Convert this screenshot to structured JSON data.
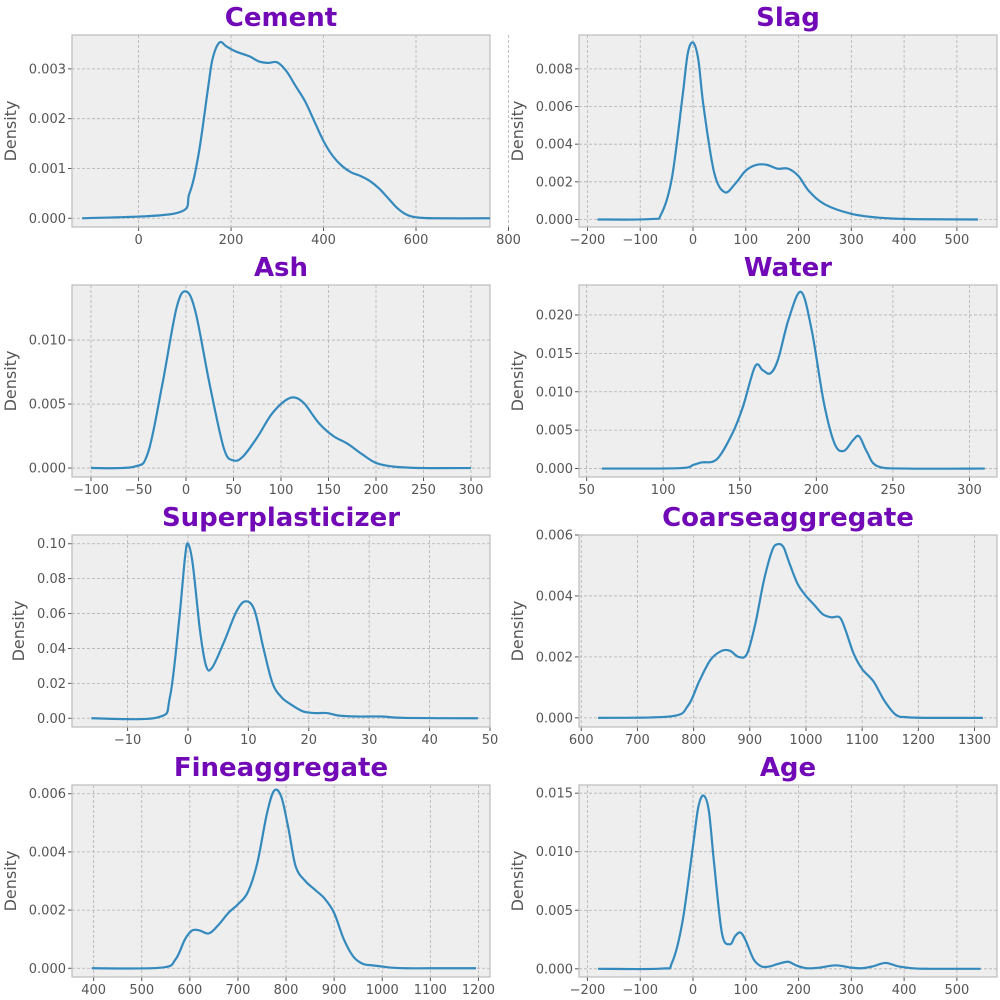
{
  "colors": {
    "title": "#7209b7",
    "line": "#348abd",
    "panel_bg": "#eeeeee",
    "grid": "#b2b2b2",
    "spine": "#bcbcbc",
    "text": "#555555"
  },
  "chart_data": [
    {
      "type": "line",
      "title": "Cement",
      "xlabel": "",
      "ylabel": "Density",
      "grid": true,
      "xlim": [
        -144,
        760
      ],
      "ylim": [
        -0.000175,
        0.00368
      ],
      "xticks": [
        "0",
        "200",
        "400",
        "600",
        "800"
      ],
      "xtick_values": [
        0,
        200,
        400,
        600,
        800
      ],
      "yticks": [
        "0.000",
        "0.001",
        "0.002",
        "0.003"
      ],
      "ytick_values": [
        0,
        0.001,
        0.002,
        0.003
      ],
      "series": [
        {
          "x": [
            -122,
            80,
            110,
            130,
            150,
            160,
            175,
            190,
            210,
            240,
            260,
            280,
            300,
            320,
            340,
            360,
            380,
            400,
            420,
            440,
            460,
            480,
            500,
            520,
            540,
            560,
            580,
            600,
            640,
            760
          ],
          "y": [
            0,
            0.0001,
            0.0005,
            0.0013,
            0.0026,
            0.0032,
            0.00353,
            0.00345,
            0.00335,
            0.00325,
            0.00315,
            0.00312,
            0.00313,
            0.00295,
            0.00265,
            0.00235,
            0.00195,
            0.00155,
            0.00125,
            0.00105,
            0.00092,
            0.00085,
            0.00075,
            0.0006,
            0.0004,
            0.0002,
            7e-05,
            2e-05,
            0,
            0
          ]
        }
      ]
    },
    {
      "type": "line",
      "title": "Slag",
      "xlabel": "",
      "ylabel": "Density",
      "grid": true,
      "xlim": [
        -216,
        576
      ],
      "ylim": [
        -0.0004,
        0.0098
      ],
      "xticks": [
        "−200",
        "−100",
        "0",
        "100",
        "200",
        "300",
        "400",
        "500"
      ],
      "xtick_values": [
        -200,
        -100,
        0,
        100,
        200,
        300,
        400,
        500
      ],
      "yticks": [
        "0.000",
        "0.002",
        "0.004",
        "0.006",
        "0.008"
      ],
      "ytick_values": [
        0,
        0.002,
        0.004,
        0.006,
        0.008
      ],
      "series": [
        {
          "x": [
            -181,
            -80,
            -60,
            -40,
            -20,
            -10,
            0,
            10,
            20,
            40,
            60,
            80,
            100,
            120,
            140,
            160,
            180,
            200,
            220,
            250,
            300,
            350,
            400,
            450,
            540
          ],
          "y": [
            0,
            2e-05,
            0.0003,
            0.0022,
            0.0065,
            0.0088,
            0.0094,
            0.0085,
            0.006,
            0.0025,
            0.00145,
            0.0019,
            0.0026,
            0.0029,
            0.0029,
            0.0027,
            0.0027,
            0.0023,
            0.0015,
            0.0008,
            0.0003,
            0.0001,
            3e-05,
            1e-05,
            0
          ]
        }
      ]
    },
    {
      "type": "line",
      "title": "Ash",
      "xlabel": "",
      "ylabel": "Density",
      "grid": true,
      "xlim": [
        -120,
        320
      ],
      "ylim": [
        -0.0007,
        0.0143
      ],
      "xticks": [
        "−100",
        "−50",
        "0",
        "50",
        "100",
        "150",
        "200",
        "250",
        "300"
      ],
      "xtick_values": [
        -100,
        -50,
        0,
        50,
        100,
        150,
        200,
        250,
        300
      ],
      "yticks": [
        "0.000",
        "0.005",
        "0.010"
      ],
      "ytick_values": [
        0,
        0.005,
        0.01
      ],
      "series": [
        {
          "x": [
            -100,
            -55,
            -40,
            -25,
            -10,
            0,
            10,
            25,
            40,
            50,
            60,
            75,
            90,
            105,
            115,
            125,
            140,
            155,
            170,
            185,
            200,
            220,
            250,
            300
          ],
          "y": [
            0,
            0.0001,
            0.0012,
            0.0065,
            0.0125,
            0.0138,
            0.0122,
            0.0065,
            0.0015,
            0.0006,
            0.0009,
            0.0024,
            0.0042,
            0.0053,
            0.0055,
            0.005,
            0.0035,
            0.0025,
            0.0019,
            0.0011,
            0.0004,
            0.0001,
            0,
            0
          ]
        }
      ]
    },
    {
      "type": "line",
      "title": "Water",
      "xlabel": "",
      "ylabel": "Density",
      "grid": true,
      "xlim": [
        45,
        318
      ],
      "ylim": [
        -0.0011,
        0.0239
      ],
      "xticks": [
        "50",
        "100",
        "150",
        "200",
        "250",
        "300"
      ],
      "xtick_values": [
        50,
        100,
        150,
        200,
        250,
        300
      ],
      "yticks": [
        "0.000",
        "0.005",
        "0.010",
        "0.015",
        "0.020"
      ],
      "ytick_values": [
        0,
        0.005,
        0.01,
        0.015,
        0.02
      ],
      "series": [
        {
          "x": [
            60,
            110,
            120,
            125,
            135,
            145,
            152,
            160,
            165,
            170,
            175,
            182,
            190,
            197,
            205,
            212,
            218,
            224,
            228,
            233,
            240,
            260,
            310
          ],
          "y": [
            0,
            5e-05,
            0.0005,
            0.0008,
            0.0012,
            0.0045,
            0.008,
            0.0133,
            0.0128,
            0.0124,
            0.0142,
            0.0195,
            0.023,
            0.018,
            0.0085,
            0.0032,
            0.0023,
            0.0037,
            0.0042,
            0.0022,
            0.0003,
            0,
            0
          ]
        }
      ]
    },
    {
      "type": "line",
      "title": "Superplasticizer",
      "xlabel": "",
      "ylabel": "Density",
      "grid": true,
      "xlim": [
        -19.2,
        50
      ],
      "ylim": [
        -0.005,
        0.105
      ],
      "xticks": [
        "−10",
        "0",
        "10",
        "20",
        "30",
        "40",
        "50"
      ],
      "xtick_values": [
        -10,
        0,
        10,
        20,
        30,
        40,
        50
      ],
      "yticks": [
        "0.00",
        "0.02",
        "0.04",
        "0.06",
        "0.08",
        "0.10"
      ],
      "ytick_values": [
        0,
        0.02,
        0.04,
        0.06,
        0.08,
        0.1
      ],
      "series": [
        {
          "x": [
            -16,
            -5,
            -3,
            -1.5,
            -0.5,
            0,
            0.8,
            2,
            3,
            4,
            6,
            8,
            9.5,
            11,
            12.5,
            14,
            15.5,
            17,
            19,
            21,
            23,
            25,
            28,
            32,
            36,
            48
          ],
          "y": [
            0,
            0.0005,
            0.012,
            0.055,
            0.092,
            0.1,
            0.088,
            0.05,
            0.03,
            0.029,
            0.044,
            0.061,
            0.067,
            0.062,
            0.04,
            0.02,
            0.012,
            0.008,
            0.004,
            0.003,
            0.003,
            0.0015,
            0.001,
            0.001,
            0.0002,
            0
          ]
        }
      ]
    },
    {
      "type": "line",
      "title": "Coarseaggregate",
      "xlabel": "",
      "ylabel": "Density",
      "grid": true,
      "xlim": [
        596,
        1340
      ],
      "ylim": [
        -0.0003,
        0.006
      ],
      "xticks": [
        "600",
        "700",
        "800",
        "900",
        "1000",
        "1100",
        "1200",
        "1300"
      ],
      "xtick_values": [
        600,
        700,
        800,
        900,
        1000,
        1100,
        1200,
        1300
      ],
      "yticks": [
        "0.000",
        "0.002",
        "0.004",
        "0.006"
      ],
      "ytick_values": [
        0,
        0.002,
        0.004,
        0.006
      ],
      "series": [
        {
          "x": [
            630,
            760,
            790,
            810,
            830,
            850,
            865,
            880,
            895,
            910,
            925,
            940,
            950,
            960,
            970,
            985,
            1000,
            1015,
            1030,
            1045,
            1060,
            1070,
            1085,
            1100,
            1120,
            1140,
            1160,
            1180,
            1220,
            1315
          ],
          "y": [
            0,
            5e-05,
            0.0004,
            0.0012,
            0.0019,
            0.0022,
            0.0022,
            0.002,
            0.0021,
            0.0031,
            0.0045,
            0.0055,
            0.0057,
            0.0056,
            0.0051,
            0.0044,
            0.004,
            0.0037,
            0.0034,
            0.0033,
            0.0033,
            0.0029,
            0.0021,
            0.0016,
            0.0012,
            0.00055,
            0.0001,
            2e-05,
            0,
            0
          ]
        }
      ]
    },
    {
      "type": "line",
      "title": "Fineaggregate",
      "xlabel": "",
      "ylabel": "Density",
      "grid": true,
      "xlim": [
        355,
        1224
      ],
      "ylim": [
        -0.0003,
        0.0063
      ],
      "xticks": [
        "400",
        "500",
        "600",
        "700",
        "800",
        "900",
        "1000",
        "1100",
        "1200"
      ],
      "xtick_values": [
        400,
        500,
        600,
        700,
        800,
        900,
        1000,
        1100,
        1200
      ],
      "yticks": [
        "0.000",
        "0.002",
        "0.004",
        "0.006"
      ],
      "ytick_values": [
        0,
        0.002,
        0.004,
        0.006
      ],
      "series": [
        {
          "x": [
            396,
            540,
            570,
            590,
            605,
            620,
            640,
            660,
            680,
            700,
            720,
            740,
            760,
            775,
            790,
            805,
            820,
            840,
            860,
            880,
            900,
            920,
            940,
            960,
            980,
            1000,
            1020,
            1050,
            1100,
            1195
          ],
          "y": [
            0,
            2e-05,
            0.0003,
            0.001,
            0.0013,
            0.0013,
            0.0012,
            0.0015,
            0.0019,
            0.0022,
            0.0026,
            0.0036,
            0.0053,
            0.0061,
            0.0059,
            0.0048,
            0.0035,
            0.003,
            0.0027,
            0.0024,
            0.0019,
            0.001,
            0.0004,
            0.00015,
            0.0001,
            6e-05,
            2e-05,
            0,
            0,
            0
          ]
        }
      ]
    },
    {
      "type": "line",
      "title": "Age",
      "xlabel": "",
      "ylabel": "Density",
      "grid": true,
      "xlim": [
        -216,
        576
      ],
      "ylim": [
        -0.0007,
        0.0157
      ],
      "xticks": [
        "−200",
        "−100",
        "0",
        "100",
        "200",
        "300",
        "400",
        "500"
      ],
      "xtick_values": [
        -200,
        -100,
        0,
        100,
        200,
        300,
        400,
        500
      ],
      "yticks": [
        "0.000",
        "0.005",
        "0.010",
        "0.015"
      ],
      "ytick_values": [
        0,
        0.005,
        0.01,
        0.015
      ],
      "series": [
        {
          "x": [
            -180,
            -60,
            -40,
            -20,
            0,
            10,
            20,
            30,
            40,
            55,
            70,
            80,
            90,
            100,
            115,
            130,
            145,
            160,
            180,
            195,
            215,
            240,
            270,
            300,
            320,
            340,
            365,
            390,
            420,
            450,
            545
          ],
          "y": [
            0,
            2e-05,
            0.0005,
            0.004,
            0.0105,
            0.0138,
            0.0148,
            0.0135,
            0.009,
            0.003,
            0.0021,
            0.0028,
            0.0031,
            0.0024,
            0.0008,
            0.0002,
            0.0002,
            0.0004,
            0.0006,
            0.0003,
            5e-05,
            0.0001,
            0.0003,
            0.0001,
            5e-05,
            0.0002,
            0.0005,
            0.0002,
            3e-05,
            0,
            0
          ]
        }
      ]
    }
  ]
}
